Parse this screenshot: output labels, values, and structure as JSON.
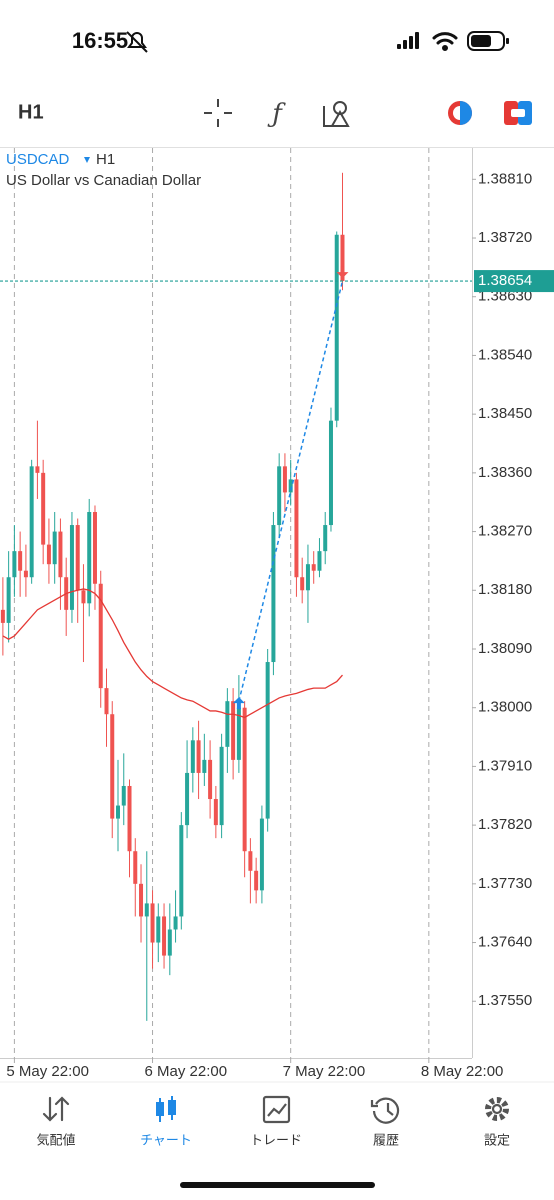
{
  "status_bar": {
    "time": "16:55"
  },
  "toolbar": {
    "timeframe": "H1"
  },
  "chart_data": {
    "type": "candlestick",
    "symbol": "USDCAD",
    "timeframe": "H1",
    "subtitle": "US Dollar vs Canadian Dollar",
    "categories": [
      null,
      null,
      "5 May 22:00",
      null,
      null,
      null,
      null,
      null,
      null,
      null,
      null,
      null,
      null,
      null,
      null,
      null,
      null,
      null,
      null,
      null,
      null,
      null,
      null,
      null,
      null,
      null,
      "6 May 22:00",
      null,
      null,
      null,
      null,
      null,
      null,
      null,
      null,
      null,
      null,
      null,
      null,
      null,
      null,
      null,
      null,
      null,
      null,
      null,
      null,
      null,
      null,
      null,
      "7 May 22:00",
      null,
      null,
      null,
      null,
      null,
      null,
      null,
      null,
      null,
      null,
      null,
      null,
      null,
      null,
      null,
      null,
      null,
      null,
      null,
      null,
      null,
      null,
      null,
      "8 May 22:00",
      null,
      null,
      null,
      null,
      null,
      null,
      null
    ],
    "open": [
      1.3815,
      1.3813,
      1.382,
      1.3824,
      1.3821,
      1.382,
      1.3837,
      1.3836,
      1.3825,
      1.3822,
      1.3827,
      1.382,
      1.3815,
      1.3828,
      1.3818,
      1.3816,
      1.383,
      1.3819,
      1.3803,
      1.3799,
      1.3783,
      1.3785,
      1.3788,
      1.3778,
      1.3773,
      1.3768,
      1.377,
      1.3764,
      1.3768,
      1.3762,
      1.3766,
      1.3768,
      1.3782,
      1.379,
      1.3795,
      1.379,
      1.3792,
      1.3786,
      1.3782,
      1.3794,
      1.3801,
      1.3792,
      1.38,
      1.3778,
      1.3775,
      1.3772,
      1.3783,
      1.3807,
      1.3828,
      1.3837,
      1.3833,
      1.3835,
      1.382,
      1.3818,
      1.3822,
      1.3821,
      1.3824,
      1.3828,
      1.3844,
      1.38725,
      null,
      null,
      null,
      null,
      null,
      null,
      null,
      null,
      null,
      null,
      null,
      null,
      null,
      null,
      null,
      null,
      null,
      null,
      null,
      null,
      null,
      null
    ],
    "high": [
      1.382,
      1.3824,
      1.3828,
      1.3827,
      1.3825,
      1.3838,
      1.3844,
      1.3838,
      1.3829,
      1.383,
      1.3829,
      1.3823,
      1.383,
      1.3829,
      1.3822,
      1.3832,
      1.3831,
      1.3821,
      1.3806,
      1.3801,
      1.3792,
      1.3793,
      1.3789,
      1.378,
      1.3776,
      1.3778,
      1.3772,
      1.377,
      1.377,
      1.377,
      1.3772,
      1.3784,
      1.3795,
      1.3797,
      1.3798,
      1.3796,
      1.3795,
      1.3788,
      1.3796,
      1.3803,
      1.3803,
      1.3805,
      1.3801,
      1.378,
      1.3777,
      1.3785,
      1.3809,
      1.383,
      1.3839,
      1.3839,
      1.3838,
      1.3836,
      1.3823,
      1.3825,
      1.3824,
      1.3826,
      1.383,
      1.3846,
      1.3873,
      1.3882,
      null,
      null,
      null,
      null,
      null,
      null,
      null,
      null,
      null,
      null,
      null,
      null,
      null,
      null,
      null,
      null,
      null,
      null,
      null,
      null,
      null,
      null
    ],
    "low": [
      1.3808,
      1.381,
      1.3817,
      1.3817,
      1.3817,
      1.3819,
      1.3832,
      1.3822,
      1.3819,
      1.3819,
      1.3815,
      1.3811,
      1.3813,
      1.3813,
      1.3807,
      1.3814,
      1.3815,
      1.38,
      1.3794,
      1.378,
      1.3778,
      1.3782,
      1.3774,
      1.3768,
      1.3764,
      1.3752,
      1.376,
      1.3761,
      1.376,
      1.3759,
      1.3764,
      1.3766,
      1.378,
      1.3787,
      1.3786,
      1.3788,
      1.3783,
      1.378,
      1.378,
      1.379,
      1.3789,
      1.379,
      1.3774,
      1.377,
      1.377,
      1.377,
      1.3781,
      1.3805,
      1.3826,
      1.383,
      1.3831,
      1.3817,
      1.3816,
      1.3813,
      1.3819,
      1.382,
      1.3822,
      1.3827,
      1.3843,
      1.3864,
      null,
      null,
      null,
      null,
      null,
      null,
      null,
      null,
      null,
      null,
      null,
      null,
      null,
      null,
      null,
      null,
      null,
      null,
      null,
      null,
      null,
      null
    ],
    "close": [
      1.3813,
      1.382,
      1.3824,
      1.3821,
      1.382,
      1.3837,
      1.3836,
      1.3825,
      1.3822,
      1.3827,
      1.382,
      1.3815,
      1.3828,
      1.3818,
      1.3816,
      1.383,
      1.3819,
      1.3803,
      1.3799,
      1.3783,
      1.3785,
      1.3788,
      1.3778,
      1.3773,
      1.3768,
      1.377,
      1.3764,
      1.3768,
      1.3762,
      1.3766,
      1.3768,
      1.3782,
      1.379,
      1.3795,
      1.379,
      1.3792,
      1.3786,
      1.3782,
      1.3794,
      1.3801,
      1.3792,
      1.38,
      1.3778,
      1.3775,
      1.3772,
      1.3783,
      1.3807,
      1.3828,
      1.3837,
      1.3833,
      1.3835,
      1.382,
      1.3818,
      1.3822,
      1.3821,
      1.3824,
      1.3828,
      1.3844,
      1.38725,
      1.38654,
      null,
      null,
      null,
      null,
      null,
      null,
      null,
      null,
      null,
      null,
      null,
      null,
      null,
      null,
      null,
      null,
      null,
      null,
      null,
      null,
      null,
      null
    ],
    "up_color": "#26a69a",
    "down_color": "#ef5350",
    "moving_average": {
      "color": "#e53935",
      "values": [
        1.3811,
        1.38105,
        1.3811,
        1.3812,
        1.3813,
        1.3814,
        1.3815,
        1.38155,
        1.3816,
        1.38165,
        1.3817,
        1.38175,
        1.38178,
        1.3818,
        1.38182,
        1.3818,
        1.38175,
        1.38165,
        1.3815,
        1.38135,
        1.38118,
        1.381,
        1.38085,
        1.3807,
        1.38058,
        1.38048,
        1.3804,
        1.38035,
        1.3803,
        1.38025,
        1.3802,
        1.38015,
        1.38012,
        1.3801,
        1.38005,
        1.38,
        1.37995,
        1.37995,
        1.37993,
        1.3799,
        1.3799,
        1.37988,
        1.37985,
        1.3799,
        1.37995,
        1.38,
        1.38005,
        1.3801,
        1.38015,
        1.38018,
        1.3802,
        1.38022,
        1.38025,
        1.38028,
        1.3803,
        1.3803,
        1.3803,
        1.38035,
        1.3804,
        1.3805,
        null,
        null,
        null,
        null,
        null,
        null,
        null,
        null,
        null,
        null,
        null,
        null,
        null,
        null,
        null,
        null,
        null,
        null,
        null,
        null,
        null,
        null
      ]
    },
    "trade": {
      "open_bar": 41,
      "open_price": 1.3801,
      "close_bar": 59,
      "close_price": 1.38654,
      "color": "#1e88e5"
    },
    "current_price": 1.38654,
    "current_price_color": "#1e9e94",
    "ylim": [
      1.37463,
      1.38858
    ],
    "yticks": [
      {
        "value": 1.3881,
        "label": "1.38810"
      },
      {
        "value": 1.3872,
        "label": "1.38720"
      },
      {
        "value": 1.3863,
        "label": "1.38630"
      },
      {
        "value": 1.3854,
        "label": "1.38540"
      },
      {
        "value": 1.3845,
        "label": "1.38450"
      },
      {
        "value": 1.3836,
        "label": "1.38360"
      },
      {
        "value": 1.3827,
        "label": "1.38270"
      },
      {
        "value": 1.3818,
        "label": "1.38180"
      },
      {
        "value": 1.3809,
        "label": "1.38090"
      },
      {
        "value": 1.38,
        "label": "1.38000"
      },
      {
        "value": 1.3791,
        "label": "1.37910"
      },
      {
        "value": 1.3782,
        "label": "1.37820"
      },
      {
        "value": 1.3773,
        "label": "1.37730"
      },
      {
        "value": 1.3764,
        "label": "1.37640"
      },
      {
        "value": 1.3755,
        "label": "1.37550"
      }
    ]
  },
  "nav": {
    "items": [
      {
        "label": "気配値",
        "active": false
      },
      {
        "label": "チャート",
        "active": true
      },
      {
        "label": "トレード",
        "active": false
      },
      {
        "label": "履歴",
        "active": false
      },
      {
        "label": "設定",
        "active": false
      }
    ]
  }
}
